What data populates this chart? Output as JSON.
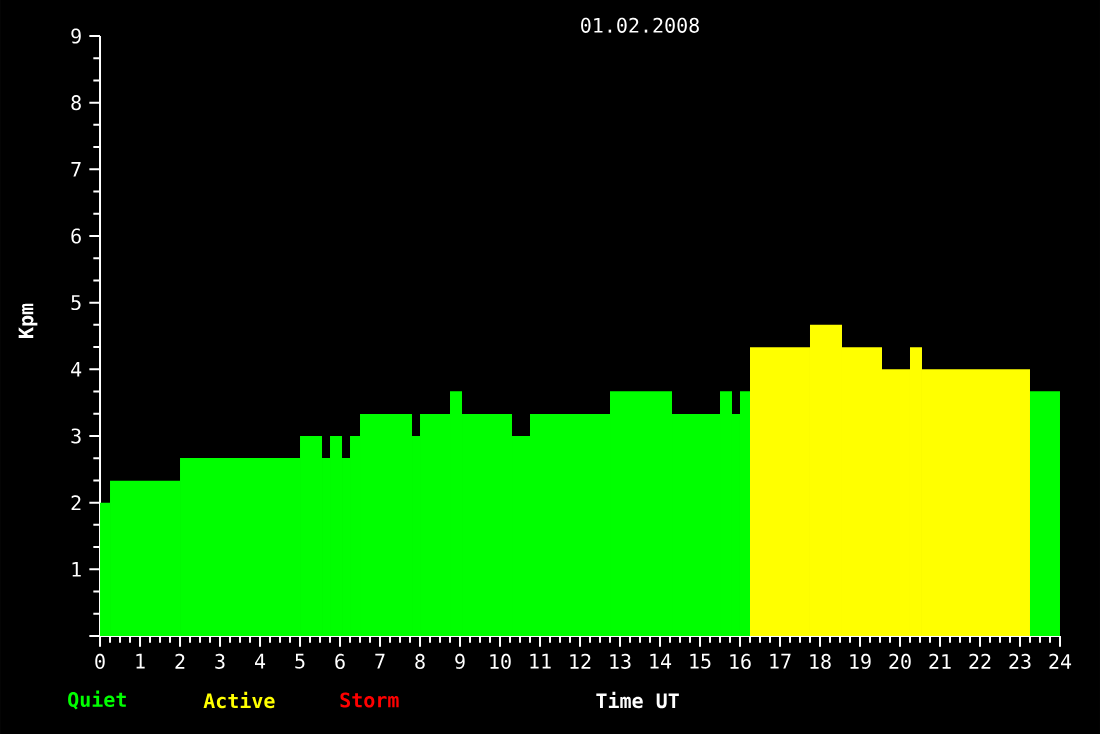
{
  "chart_data": {
    "type": "histogram",
    "title": "01.02.2008",
    "xlabel": "Time UT",
    "ylabel": "Kpm",
    "bins": [
      0,
      0.25,
      2,
      5,
      5.55,
      5.75,
      6.05,
      6.25,
      6.5,
      7.8,
      8,
      8.75,
      9.05,
      10.3,
      10.75,
      12.75,
      14.3,
      15.5,
      15.8,
      16,
      16.25,
      17.75,
      18.55,
      19.55,
      20.25,
      20.55,
      23.25,
      24
    ],
    "series": [
      {
        "name": "Quiet",
        "color": "#00ff00",
        "values": [
          2,
          2.33,
          2.67,
          3,
          2.67,
          3,
          2.67,
          3,
          3.33,
          3,
          3.33,
          3.67,
          3.33,
          3,
          3.33,
          3.67,
          3.33,
          3.67,
          3.33,
          3.67,
          null,
          null,
          null,
          null,
          null,
          null,
          3.67
        ]
      },
      {
        "name": "Active",
        "color": "#ffff00",
        "values": [
          null,
          null,
          null,
          null,
          null,
          null,
          null,
          null,
          null,
          null,
          null,
          null,
          null,
          null,
          null,
          null,
          null,
          null,
          null,
          null,
          4.33,
          4.67,
          4.33,
          4,
          4.33,
          4,
          null
        ]
      }
    ],
    "annotations": [
      "Storm"
    ],
    "xlim": [
      0,
      24
    ],
    "ylim": [
      0,
      9
    ],
    "xticks": [
      0,
      1,
      2,
      3,
      4,
      5,
      6,
      7,
      8,
      9,
      10,
      11,
      12,
      13,
      14,
      15,
      16,
      17,
      18,
      19,
      20,
      21,
      22,
      23,
      24
    ],
    "yticks": [
      {
        "value": 0,
        "label": null
      },
      1,
      2,
      3,
      4,
      5,
      6,
      7,
      8,
      9
    ],
    "legend": "bottom left",
    "grid": false
  }
}
